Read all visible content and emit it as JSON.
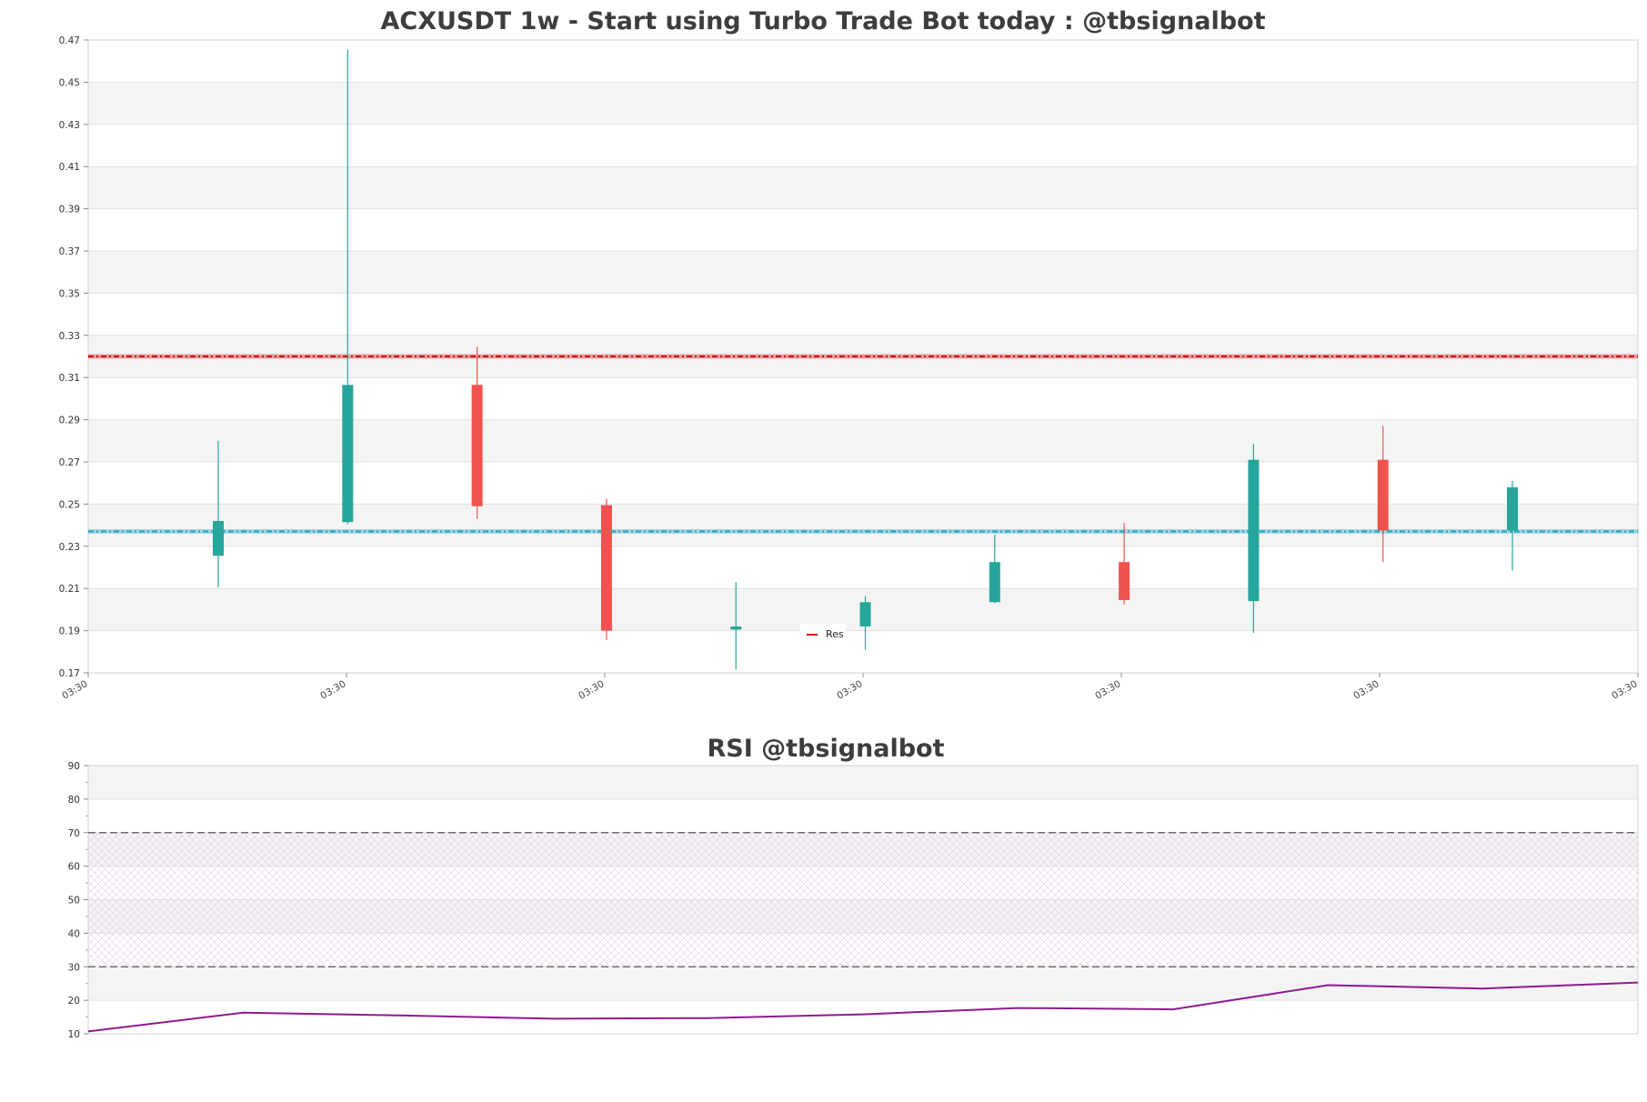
{
  "chart_data": [
    {
      "type": "candlestick",
      "title": "ACXUSDT 1w - Start using Turbo Trade Bot today : @tbsignalbot",
      "ylim": [
        0.17,
        0.47
      ],
      "y_ticks": [
        "0.17",
        "0.19",
        "0.21",
        "0.23",
        "0.25",
        "0.27",
        "0.29",
        "0.31",
        "0.33",
        "0.35",
        "0.37",
        "0.39",
        "0.41",
        "0.43",
        "0.45",
        "0.47"
      ],
      "x_tick_labels": [
        "03:30",
        "03:30",
        "03:30",
        "03:30",
        "03:30",
        "03:30",
        "03:30"
      ],
      "grid": true,
      "legend": {
        "placement": "center",
        "entries": [
          {
            "label": "Res",
            "color": "#cc0000"
          }
        ]
      },
      "candles": [
        {
          "open": 0.2255,
          "high": 0.28,
          "low": 0.2105,
          "close": 0.242
        },
        {
          "open": 0.2415,
          "high": 0.4655,
          "low": 0.2405,
          "close": 0.3065
        },
        {
          "open": 0.3065,
          "high": 0.3245,
          "low": 0.243,
          "close": 0.249
        },
        {
          "open": 0.2495,
          "high": 0.2525,
          "low": 0.1855,
          "close": 0.19
        },
        {
          "open": 0.1905,
          "high": 0.213,
          "low": 0.1715,
          "close": 0.192
        },
        {
          "open": 0.192,
          "high": 0.2065,
          "low": 0.181,
          "close": 0.2035
        },
        {
          "open": 0.2035,
          "high": 0.2355,
          "low": 0.203,
          "close": 0.2225
        },
        {
          "open": 0.2225,
          "high": 0.241,
          "low": 0.2025,
          "close": 0.2045
        },
        {
          "open": 0.204,
          "high": 0.2785,
          "low": 0.189,
          "close": 0.271
        },
        {
          "open": 0.271,
          "high": 0.287,
          "low": 0.2225,
          "close": 0.2375
        },
        {
          "open": 0.2375,
          "high": 0.261,
          "low": 0.2185,
          "close": 0.258
        }
      ],
      "resistance_level": 0.32,
      "support_level": 0.237,
      "colors": {
        "up": "#26a69a",
        "down": "#ef5350",
        "resistance": "#cc0000",
        "support": "#1a9fc0"
      }
    },
    {
      "type": "line",
      "title": "RSI @tbsignalbot",
      "ylim": [
        10,
        90
      ],
      "y_ticks": [
        "10",
        "20",
        "30",
        "40",
        "50",
        "60",
        "70",
        "80",
        "90"
      ],
      "grid": true,
      "series": [
        {
          "values": [
            10.7,
            16.3,
            15.5,
            14.5,
            14.7,
            15.8,
            17.7,
            17.3,
            24.5,
            23.5,
            25.3
          ],
          "color": "#8e1a8e"
        }
      ],
      "reference_lines": [
        70,
        30
      ],
      "hatched_band": [
        30,
        70
      ]
    }
  ]
}
